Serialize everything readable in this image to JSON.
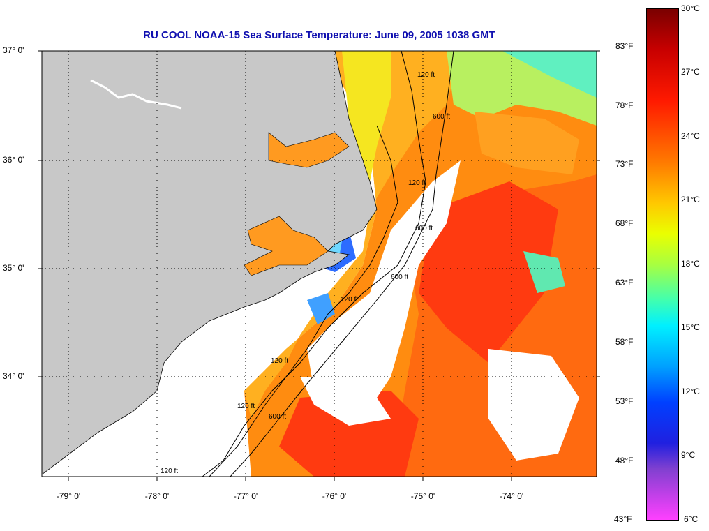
{
  "title": "RU COOL  NOAA-15  Sea Surface Temperature:  June 09, 2005 1038 GMT",
  "lat_labels": [
    "37° 0'",
    "36° 0'",
    "35° 0'",
    "34° 0'"
  ],
  "lon_labels": [
    "-79° 0'",
    "-78° 0'",
    "-77° 0'",
    "-76° 0'",
    "-75° 0'",
    "-74° 0'"
  ],
  "contour_labels": [
    "120 ft",
    "600 ft",
    "120 ft",
    "600 ft",
    "120 ft",
    "600 ft",
    "120 ft",
    "600 ft",
    "120 ft",
    "120 ft"
  ],
  "colorbar": {
    "celsius": [
      "30°C",
      "27°C",
      "24°C",
      "21°C",
      "18°C",
      "15°C",
      "12°C",
      "9°C",
      "6°C"
    ],
    "fahrenheit": [
      "83°F",
      "78°F",
      "73°F",
      "68°F",
      "63°F",
      "58°F",
      "53°F",
      "48°F",
      "43°F"
    ]
  },
  "colors": {
    "land": "#c8c8c8",
    "title": "#1010b0",
    "grid": "#000000"
  }
}
